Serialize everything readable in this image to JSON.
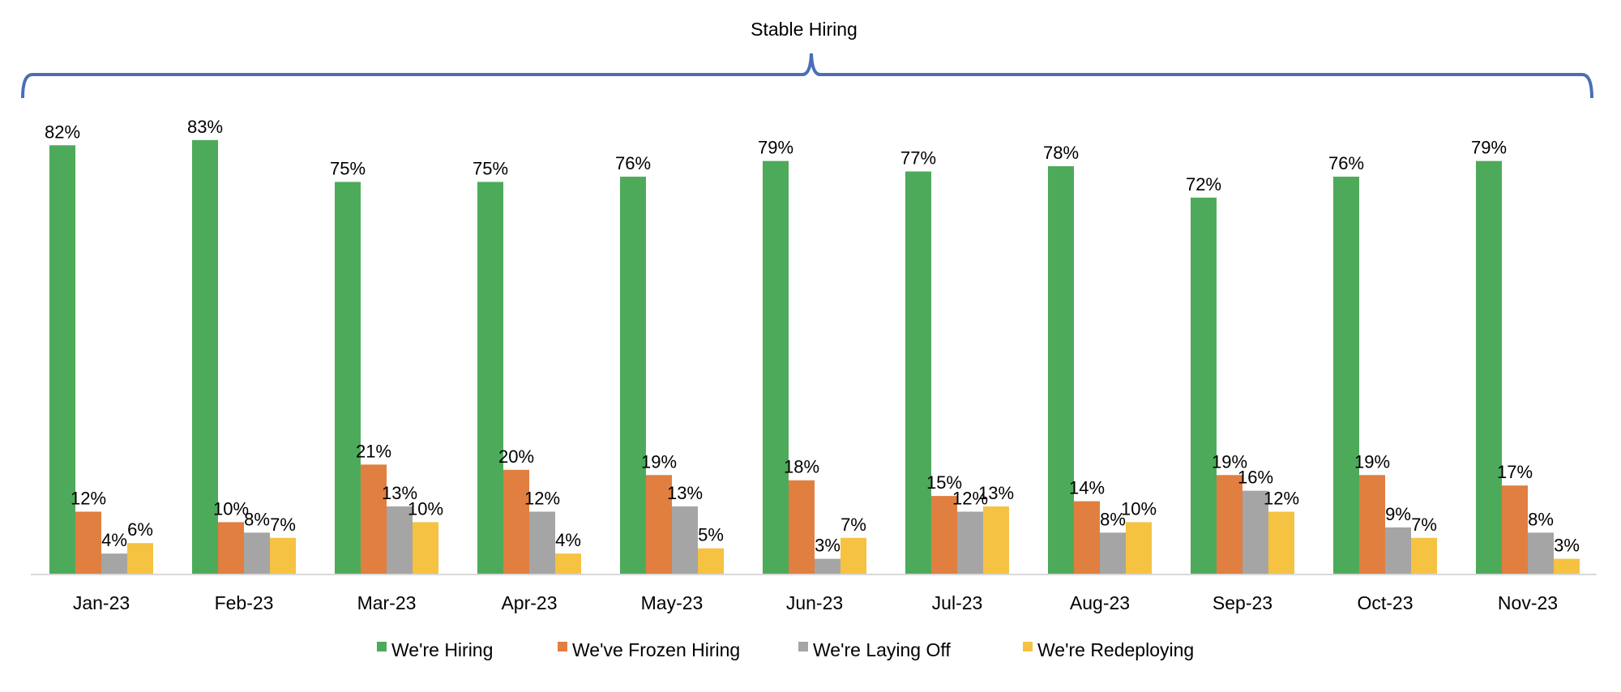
{
  "chart_data": {
    "type": "bar",
    "title": "",
    "annotation": "Stable Hiring",
    "categories": [
      "Jan-23",
      "Feb-23",
      "Mar-23",
      "Apr-23",
      "May-23",
      "Jun-23",
      "Jul-23",
      "Aug-23",
      "Sep-23",
      "Oct-23",
      "Nov-23"
    ],
    "series": [
      {
        "name": "We're Hiring",
        "color": "#4EAA5B",
        "values": [
          82,
          83,
          75,
          75,
          76,
          79,
          77,
          78,
          72,
          76,
          79
        ]
      },
      {
        "name": "We've Frozen Hiring",
        "color": "#E07F3F",
        "values": [
          12,
          10,
          21,
          20,
          19,
          18,
          15,
          14,
          19,
          19,
          17
        ]
      },
      {
        "name": "We're Laying Off",
        "color": "#A5A5A5",
        "values": [
          4,
          8,
          13,
          12,
          13,
          3,
          12,
          8,
          16,
          9,
          8
        ]
      },
      {
        "name": "We're Redeploying",
        "color": "#F5C242",
        "values": [
          6,
          7,
          10,
          4,
          5,
          7,
          13,
          10,
          12,
          7,
          3
        ]
      }
    ],
    "value_format": "percent",
    "ylim": [
      0,
      100
    ],
    "grid": false,
    "y_axis_visible": false,
    "legend_position": "bottom",
    "bracket_color": "#4A6FB5",
    "axis_color": "#D9D9D9"
  }
}
